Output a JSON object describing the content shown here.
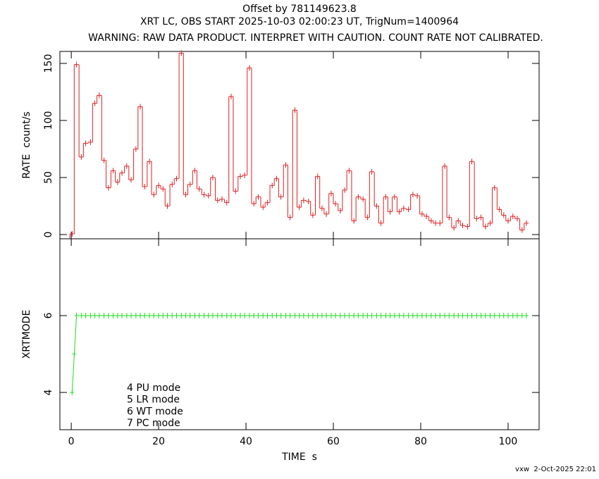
{
  "chart_data": [
    {
      "type": "step",
      "title_lines": [
        "Offset by 781149623.8",
        "XRT LC, OBS START 2025-10-03 02:00:23 UT, TrigNum=1400964",
        "WARNING: RAW DATA PRODUCT. INTERPRET WITH CAUTION. COUNT RATE NOT CALIBRATED."
      ],
      "ylabel": "RATE  count/s",
      "color": "#e02020",
      "xlim": [
        -2.6,
        107.1
      ],
      "xticks": [
        0,
        20,
        40,
        60,
        80,
        100
      ],
      "ylim": [
        -3.7,
        160.5
      ],
      "yticks": [
        0,
        50,
        100,
        150
      ],
      "x": [
        0.2,
        1.2,
        2.3,
        3.3,
        4.4,
        5.4,
        6.4,
        7.5,
        8.5,
        9.6,
        10.6,
        11.6,
        12.7,
        13.7,
        14.8,
        15.8,
        16.8,
        17.9,
        18.9,
        20.0,
        21.0,
        22.0,
        23.1,
        24.1,
        25.2,
        26.2,
        27.2,
        28.3,
        29.3,
        30.4,
        31.4,
        32.4,
        33.5,
        34.5,
        35.6,
        36.6,
        37.6,
        38.7,
        39.7,
        40.8,
        41.8,
        42.8,
        43.9,
        44.9,
        46.0,
        47.0,
        48.0,
        49.1,
        50.1,
        51.2,
        52.2,
        53.2,
        54.3,
        55.3,
        56.4,
        57.4,
        58.4,
        59.5,
        60.5,
        61.6,
        62.6,
        63.6,
        64.7,
        65.7,
        66.8,
        67.8,
        68.8,
        69.9,
        70.9,
        72.0,
        73.0,
        74.0,
        75.1,
        76.1,
        77.2,
        78.2,
        79.2,
        80.3,
        81.3,
        82.4,
        83.4,
        84.4,
        85.5,
        86.5,
        87.6,
        88.6,
        89.6,
        90.7,
        91.7,
        92.8,
        93.8,
        94.8,
        95.9,
        96.9,
        98.0,
        99.0,
        100.0,
        101.1,
        102.1,
        103.2,
        104.2
      ],
      "values": [
        0.6,
        149,
        68,
        80,
        81,
        115,
        122,
        65,
        41,
        56,
        46,
        54,
        60,
        48,
        75,
        112,
        42,
        64,
        35,
        43,
        40,
        25,
        44,
        49,
        159,
        35,
        44,
        56,
        40,
        35,
        34,
        50,
        30,
        31,
        28,
        121,
        38,
        51,
        52,
        146,
        27,
        33,
        24,
        28,
        43,
        49,
        33,
        61,
        15,
        109,
        24,
        30,
        29,
        17,
        51,
        23,
        18,
        36,
        27,
        21,
        39,
        56,
        12,
        33,
        31,
        15,
        55,
        25,
        10,
        33,
        20,
        33,
        20,
        23,
        22,
        35,
        34,
        18,
        16,
        12,
        10,
        10,
        60,
        15,
        6,
        12,
        8,
        7,
        64,
        14,
        15,
        7,
        10,
        41,
        22,
        17,
        12,
        16,
        14,
        4,
        10
      ]
    },
    {
      "type": "line",
      "ylabel": "XRTMODE",
      "xlabel": "TIME  s",
      "color": "#22dd22",
      "xlim": [
        -2.6,
        107.1
      ],
      "xticks": [
        0,
        20,
        40,
        60,
        80,
        100
      ],
      "ylim": [
        3.03,
        8.0
      ],
      "yticks": [
        4,
        6
      ],
      "notes": [
        "4 PU mode",
        "5 LR mode",
        "6 WT mode",
        "7 PC mode"
      ],
      "x": [
        0.2,
        0.7,
        1.2,
        2.3,
        3.3,
        4.4,
        5.4,
        6.4,
        7.5,
        8.5,
        9.6,
        10.6,
        11.6,
        12.7,
        13.7,
        14.8,
        15.8,
        16.8,
        17.9,
        18.9,
        20.0,
        21.0,
        22.0,
        23.1,
        24.1,
        25.2,
        26.2,
        27.2,
        28.3,
        29.3,
        30.4,
        31.4,
        32.4,
        33.5,
        34.5,
        35.6,
        36.6,
        37.6,
        38.7,
        39.7,
        40.8,
        41.8,
        42.8,
        43.9,
        44.9,
        46.0,
        47.0,
        48.0,
        49.1,
        50.1,
        51.2,
        52.2,
        53.2,
        54.3,
        55.3,
        56.4,
        57.4,
        58.4,
        59.5,
        60.5,
        61.6,
        62.6,
        63.6,
        64.7,
        65.7,
        66.8,
        67.8,
        68.8,
        69.9,
        70.9,
        72.0,
        73.0,
        74.0,
        75.1,
        76.1,
        77.2,
        78.2,
        79.2,
        80.3,
        81.3,
        82.4,
        83.4,
        84.4,
        85.5,
        86.5,
        87.6,
        88.6,
        89.6,
        90.7,
        91.7,
        92.8,
        93.8,
        94.8,
        95.9,
        96.9,
        98.0,
        99.0,
        100.0,
        101.1,
        102.1,
        103.2,
        104.2
      ],
      "values": [
        4,
        5,
        6,
        6,
        6,
        6,
        6,
        6,
        6,
        6,
        6,
        6,
        6,
        6,
        6,
        6,
        6,
        6,
        6,
        6,
        6,
        6,
        6,
        6,
        6,
        6,
        6,
        6,
        6,
        6,
        6,
        6,
        6,
        6,
        6,
        6,
        6,
        6,
        6,
        6,
        6,
        6,
        6,
        6,
        6,
        6,
        6,
        6,
        6,
        6,
        6,
        6,
        6,
        6,
        6,
        6,
        6,
        6,
        6,
        6,
        6,
        6,
        6,
        6,
        6,
        6,
        6,
        6,
        6,
        6,
        6,
        6,
        6,
        6,
        6,
        6,
        6,
        6,
        6,
        6,
        6,
        6,
        6,
        6,
        6,
        6,
        6,
        6,
        6,
        6,
        6,
        6,
        6,
        6,
        6,
        6,
        6,
        6,
        6,
        6,
        6,
        6
      ]
    }
  ],
  "footer": "vxw  2-Oct-2025 22:01"
}
